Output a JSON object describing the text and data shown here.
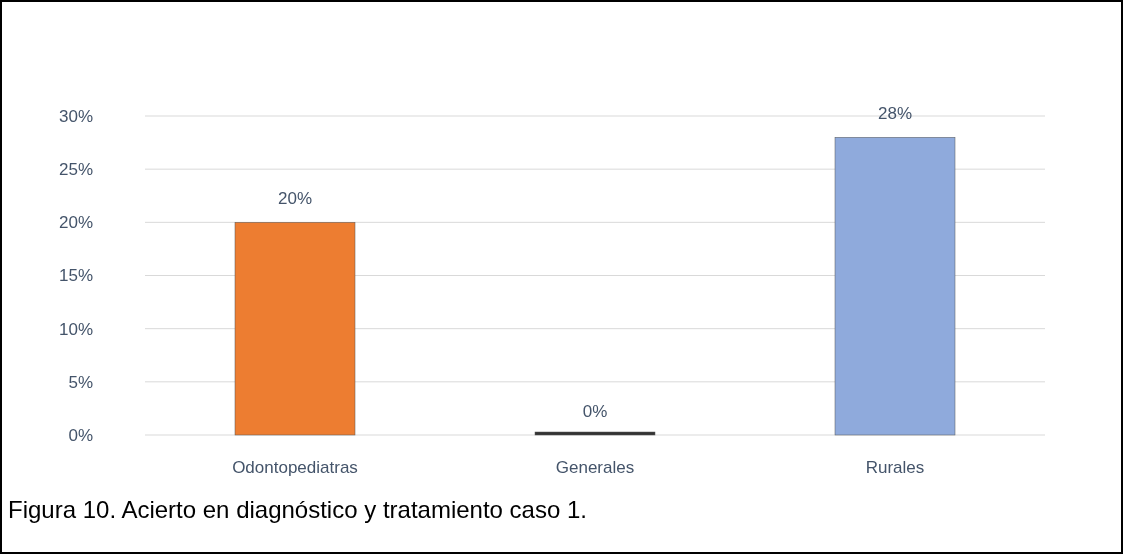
{
  "chart_data": {
    "type": "bar",
    "categories": [
      "Odontopediatras",
      "Generales",
      "Rurales"
    ],
    "values": [
      20,
      0,
      28
    ],
    "colors": [
      "#ed7d31",
      "#333333",
      "#8faadc"
    ],
    "value_labels": [
      "20%",
      "0%",
      "28%"
    ],
    "ylim": [
      0,
      30
    ],
    "yticks": [
      {
        "value": 0,
        "label": "0%"
      },
      {
        "value": 5,
        "label": "5%"
      },
      {
        "value": 10,
        "label": "10%"
      },
      {
        "value": 15,
        "label": "15%"
      },
      {
        "value": 20,
        "label": "20%"
      },
      {
        "value": 25,
        "label": "25%"
      },
      {
        "value": 30,
        "label": "30%"
      }
    ],
    "grid": "y",
    "annotations": [
      "Figura 10. Acierto en diagnóstico y tratamiento caso 1."
    ]
  }
}
